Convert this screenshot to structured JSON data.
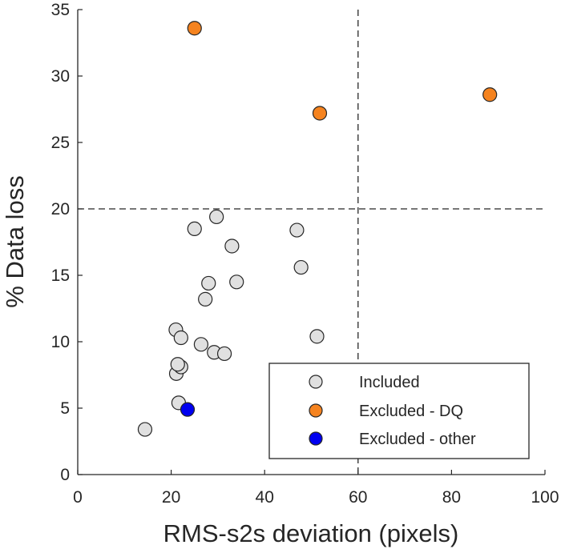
{
  "chart_data": {
    "type": "scatter",
    "xlabel": "RMS-s2s deviation (pixels)",
    "ylabel": "% Data loss",
    "xlim": [
      0,
      100
    ],
    "ylim": [
      0,
      35
    ],
    "xticks": [
      "0",
      "20",
      "40",
      "60",
      "80",
      "100"
    ],
    "yticks": [
      "0",
      "5",
      "10",
      "15",
      "20",
      "25",
      "30",
      "35"
    ],
    "grid": false,
    "legend_position": "bottom-right",
    "reference_lines": [
      {
        "orientation": "vertical",
        "value": 60,
        "style": "dashed"
      },
      {
        "orientation": "horizontal",
        "value": 20,
        "style": "dashed"
      }
    ],
    "series": [
      {
        "name": "Included",
        "color": "#e0e0e0",
        "points": [
          [
            14.4,
            3.4
          ],
          [
            21.6,
            5.4
          ],
          [
            21.1,
            7.6
          ],
          [
            22.1,
            8.1
          ],
          [
            21.4,
            8.3
          ],
          [
            21.0,
            10.9
          ],
          [
            22.1,
            10.3
          ],
          [
            26.4,
            9.8
          ],
          [
            29.2,
            9.2
          ],
          [
            31.4,
            9.1
          ],
          [
            27.3,
            13.2
          ],
          [
            28.0,
            14.4
          ],
          [
            34.0,
            14.5
          ],
          [
            33.0,
            17.2
          ],
          [
            25.0,
            18.5
          ],
          [
            29.7,
            19.4
          ],
          [
            46.9,
            18.4
          ],
          [
            47.8,
            15.6
          ],
          [
            51.2,
            10.4
          ]
        ]
      },
      {
        "name": "Excluded - DQ",
        "color": "#f5831f",
        "points": [
          [
            25.0,
            33.6
          ],
          [
            51.8,
            27.2
          ],
          [
            88.2,
            28.6
          ]
        ]
      },
      {
        "name": "Excluded - other",
        "color": "#0000f0",
        "points": [
          [
            23.5,
            4.9
          ]
        ]
      }
    ]
  }
}
